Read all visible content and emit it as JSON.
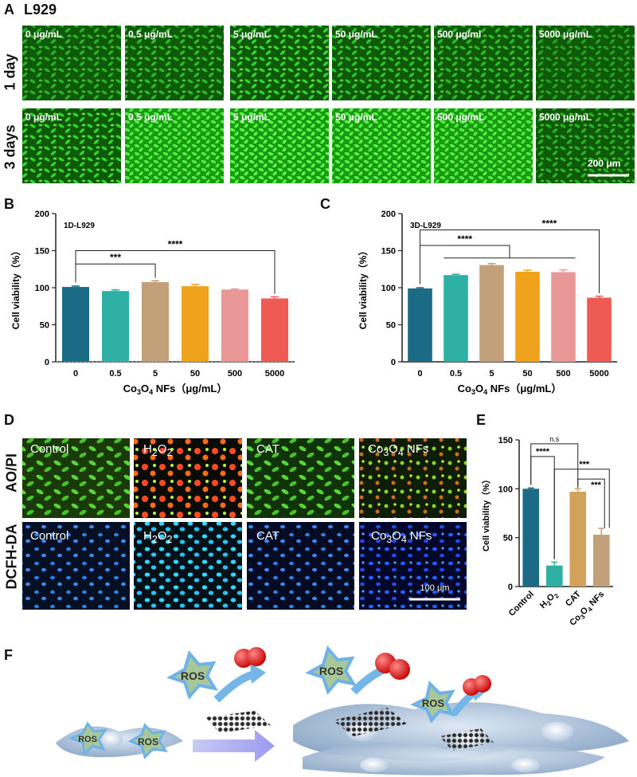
{
  "panelA": {
    "letter": "A",
    "title": "L929",
    "rows": [
      "1 day",
      "3 days"
    ],
    "concentrations": [
      "0 μg/mL",
      "0.5 μg/mL",
      "5 μg/mL",
      "50 μg/mL",
      "500 μg/ml",
      "5000 μg/mL"
    ],
    "concentrations_row2": [
      "0 μg/mL",
      "0.5 μg/mL",
      "5 μg/mL",
      "50 μg/mL",
      "500 μg/mL",
      "5000 μg/mL"
    ],
    "scalebar": "200 μm",
    "image_color": "#1fd11f",
    "density_row1": [
      0.55,
      0.6,
      0.75,
      0.65,
      0.6,
      0.45
    ],
    "density_row2": [
      0.75,
      0.85,
      0.95,
      0.9,
      0.85,
      0.55
    ]
  },
  "panelD": {
    "letter": "D",
    "rows": [
      "AO/PI",
      "DCFH-DA"
    ],
    "labels": [
      "Control",
      "H2O2",
      "CAT",
      "Co3O4 NFs"
    ],
    "scalebar": "100 μm",
    "aopi_colors": {
      "live": "#39c52a",
      "dead": "#ff4a22"
    },
    "dcfh_color": "#2f8bff"
  },
  "panelF": {
    "letter": "F",
    "ros_label": "ROS"
  },
  "chart_data": [
    {
      "letter": "B",
      "type": "bar",
      "inner_title": "1D-L929",
      "categories": [
        "0",
        "0.5",
        "5",
        "50",
        "500",
        "5000"
      ],
      "values": [
        101,
        95.5,
        107.5,
        102,
        97.5,
        85.5
      ],
      "errors": [
        1.2,
        1.5,
        1.8,
        2.5,
        0.8,
        2.2
      ],
      "colors": [
        "#1b6a86",
        "#2fb0a5",
        "#c1a07a",
        "#efa21c",
        "#e99797",
        "#ef5a54"
      ],
      "xlabel": "Co3O4 NFs（μg/mL）",
      "ylabel": "Cell viability（%）",
      "ylim": [
        0,
        200
      ],
      "yticks": [
        0,
        50,
        100,
        150,
        200
      ],
      "significance": [
        {
          "from": 0,
          "to": 2,
          "label": "***",
          "y": 132
        },
        {
          "from": 0,
          "to": 5,
          "label": "****",
          "y": 150
        }
      ]
    },
    {
      "letter": "C",
      "type": "bar",
      "inner_title": "3D-L929",
      "categories": [
        "0",
        "0.5",
        "5",
        "50",
        "500",
        "5000"
      ],
      "values": [
        99,
        117,
        130.5,
        121.5,
        121,
        86.5
      ],
      "errors": [
        1.0,
        1.2,
        2.0,
        2.0,
        3.0,
        2.0
      ],
      "colors": [
        "#1b6a86",
        "#2fb0a5",
        "#c1a07a",
        "#efa21c",
        "#e99797",
        "#ef5a54"
      ],
      "xlabel": "Co3O4 NFs（μg/mL）",
      "ylabel": "Cell viability（%）",
      "ylim": [
        0,
        200
      ],
      "yticks": [
        0,
        50,
        100,
        150,
        200
      ],
      "significance": [
        {
          "from": 0,
          "to": 3,
          "label": "****",
          "y": 157
        },
        {
          "from": 0,
          "to": 5,
          "label": "****",
          "y": 178
        }
      ]
    },
    {
      "letter": "E",
      "type": "bar",
      "categories": [
        "Control",
        "H2O2",
        "CAT",
        "Co3O4 NFs"
      ],
      "values": [
        100,
        21.5,
        97,
        53
      ],
      "errors": [
        0.8,
        3.5,
        3.0,
        6.5
      ],
      "colors": [
        "#1b6a86",
        "#2fb0a5",
        "#d3a25a",
        "#c1a07a"
      ],
      "ylabel": "Cell viability（%）",
      "ylim": [
        0,
        150
      ],
      "yticks": [
        0,
        50,
        100,
        150
      ],
      "significance": [
        {
          "label": "n.s"
        },
        {
          "label": "****"
        },
        {
          "label": "***"
        },
        {
          "label": "***"
        }
      ]
    }
  ]
}
